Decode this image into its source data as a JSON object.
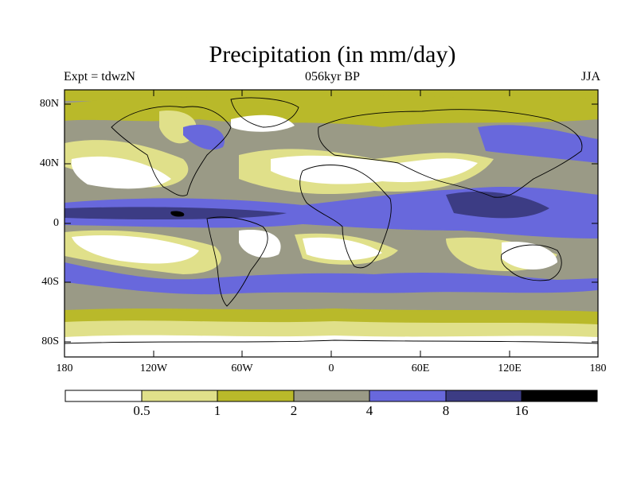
{
  "title": "Precipitation (in mm/day)",
  "left_subtitle": "Expt = tdwzN",
  "center_subtitle": "056kyr BP",
  "right_subtitle": "JJA",
  "y_ticks": [
    "80N",
    "40N",
    "0",
    "40S",
    "80S"
  ],
  "x_ticks": [
    "180",
    "120W",
    "60W",
    "0",
    "60E",
    "120E",
    "180"
  ],
  "colorbar": {
    "colors": [
      "#ffffff",
      "#e0e08a",
      "#b9b92a",
      "#9a9a86",
      "#6868dc",
      "#3c3c84",
      "#000000"
    ],
    "labels": [
      "0.5",
      "1",
      "2",
      "4",
      "8",
      "16"
    ]
  },
  "palette": {
    "lt05": "#ffffff",
    "c05_1": "#e0e08a",
    "c1_2": "#b9b92a",
    "c2_4": "#9a9a86",
    "c4_8": "#6868dc",
    "c8_16": "#3c3c84",
    "gt16": "#000000"
  }
}
